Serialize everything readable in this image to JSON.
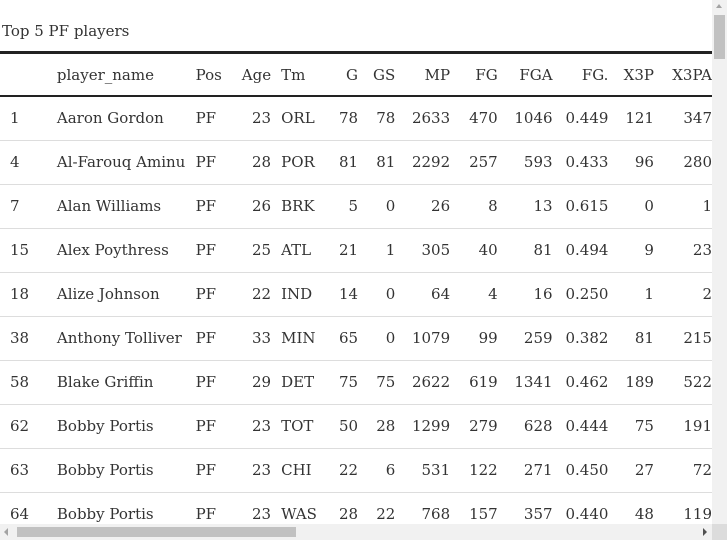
{
  "caption": "Top 5 PF players",
  "columns": {
    "idx": "",
    "player_name": "player_name",
    "pos": "Pos",
    "age": "Age",
    "tm": "Tm",
    "g": "G",
    "gs": "GS",
    "mp": "MP",
    "fg": "FG",
    "fga": "FGA",
    "fgp": "FG.",
    "x3p": "X3P",
    "x3pa": "X3PA"
  },
  "rows": [
    {
      "idx": "1",
      "player_name": "Aaron Gordon",
      "pos": "PF",
      "age": "23",
      "tm": "ORL",
      "g": "78",
      "gs": "78",
      "mp": "2633",
      "fg": "470",
      "fga": "1046",
      "fgp": "0.449",
      "x3p": "121",
      "x3pa": "347"
    },
    {
      "idx": "4",
      "player_name": "Al-Farouq Aminu",
      "pos": "PF",
      "age": "28",
      "tm": "POR",
      "g": "81",
      "gs": "81",
      "mp": "2292",
      "fg": "257",
      "fga": "593",
      "fgp": "0.433",
      "x3p": "96",
      "x3pa": "280"
    },
    {
      "idx": "7",
      "player_name": "Alan Williams",
      "pos": "PF",
      "age": "26",
      "tm": "BRK",
      "g": "5",
      "gs": "0",
      "mp": "26",
      "fg": "8",
      "fga": "13",
      "fgp": "0.615",
      "x3p": "0",
      "x3pa": "1"
    },
    {
      "idx": "15",
      "player_name": "Alex Poythress",
      "pos": "PF",
      "age": "25",
      "tm": "ATL",
      "g": "21",
      "gs": "1",
      "mp": "305",
      "fg": "40",
      "fga": "81",
      "fgp": "0.494",
      "x3p": "9",
      "x3pa": "23"
    },
    {
      "idx": "18",
      "player_name": "Alize Johnson",
      "pos": "PF",
      "age": "22",
      "tm": "IND",
      "g": "14",
      "gs": "0",
      "mp": "64",
      "fg": "4",
      "fga": "16",
      "fgp": "0.250",
      "x3p": "1",
      "x3pa": "2"
    },
    {
      "idx": "38",
      "player_name": "Anthony Tolliver",
      "pos": "PF",
      "age": "33",
      "tm": "MIN",
      "g": "65",
      "gs": "0",
      "mp": "1079",
      "fg": "99",
      "fga": "259",
      "fgp": "0.382",
      "x3p": "81",
      "x3pa": "215"
    },
    {
      "idx": "58",
      "player_name": "Blake Griffin",
      "pos": "PF",
      "age": "29",
      "tm": "DET",
      "g": "75",
      "gs": "75",
      "mp": "2622",
      "fg": "619",
      "fga": "1341",
      "fgp": "0.462",
      "x3p": "189",
      "x3pa": "522"
    },
    {
      "idx": "62",
      "player_name": "Bobby Portis",
      "pos": "PF",
      "age": "23",
      "tm": "TOT",
      "g": "50",
      "gs": "28",
      "mp": "1299",
      "fg": "279",
      "fga": "628",
      "fgp": "0.444",
      "x3p": "75",
      "x3pa": "191"
    },
    {
      "idx": "63",
      "player_name": "Bobby Portis",
      "pos": "PF",
      "age": "23",
      "tm": "CHI",
      "g": "22",
      "gs": "6",
      "mp": "531",
      "fg": "122",
      "fga": "271",
      "fgp": "0.450",
      "x3p": "27",
      "x3pa": "72"
    },
    {
      "idx": "64",
      "player_name": "Bobby Portis",
      "pos": "PF",
      "age": "23",
      "tm": "WAS",
      "g": "28",
      "gs": "22",
      "mp": "768",
      "fg": "157",
      "fga": "357",
      "fgp": "0.440",
      "x3p": "48",
      "x3pa": "119"
    }
  ],
  "scrollbars": {
    "vertical_icon": "scroll-up-arrow",
    "horizontal_icons": [
      "scroll-left-arrow",
      "scroll-right-arrow"
    ]
  }
}
